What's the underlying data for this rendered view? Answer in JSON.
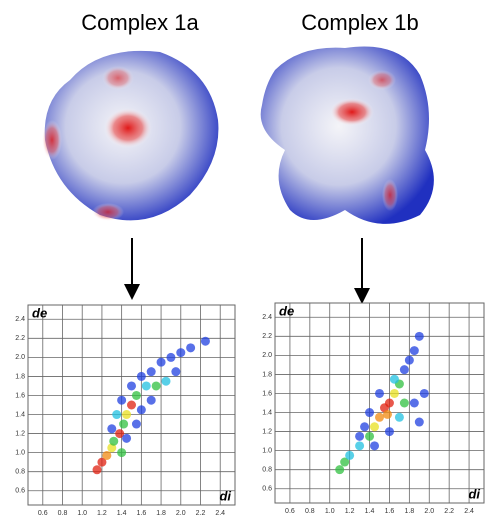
{
  "chart_data": [
    {
      "type": "scatter",
      "title": "Complex 1a",
      "xlabel": "di",
      "ylabel": "de",
      "xlim": [
        0.45,
        2.55
      ],
      "ylim": [
        0.45,
        2.55
      ],
      "xticks": [
        0.6,
        0.8,
        {
          "value": 1,
          "label": "1.0"
        },
        1.2,
        1.4,
        1.6,
        1.8,
        {
          "value": 2,
          "label": "2.0"
        },
        2.2,
        2.4
      ],
      "yticks": [
        0.6,
        0.8,
        {
          "value": 1,
          "label": "1.0"
        },
        1.2,
        1.4,
        1.6,
        1.8,
        {
          "value": 2,
          "label": "2.0"
        },
        2.2,
        2.4
      ],
      "grid": true,
      "x": [
        1.15,
        1.2,
        1.25,
        1.3,
        1.32,
        1.38,
        1.42,
        1.45,
        1.5,
        1.55,
        1.5,
        1.4,
        1.35,
        1.3,
        1.6,
        1.7,
        1.65,
        1.7,
        1.8,
        1.9,
        2.0,
        2.1,
        2.25,
        1.85,
        1.95,
        1.55,
        1.45,
        1.6,
        1.75,
        1.4
      ],
      "values": [
        0.82,
        0.9,
        0.97,
        1.05,
        1.12,
        1.2,
        1.3,
        1.4,
        1.5,
        1.6,
        1.7,
        1.55,
        1.4,
        1.25,
        1.45,
        1.55,
        1.7,
        1.85,
        1.95,
        2.0,
        2.05,
        2.1,
        2.17,
        1.75,
        1.85,
        1.3,
        1.15,
        1.8,
        1.7,
        1.0
      ],
      "colors": [
        "#e02010",
        "#e02010",
        "#f08a10",
        "#e8e020",
        "#30c040",
        "#e02010",
        "#30c040",
        "#e8e020",
        "#e02010",
        "#30c040",
        "#2040e0",
        "#2040e0",
        "#20c0e0",
        "#2040e0",
        "#2040e0",
        "#2040e0",
        "#20c0e0",
        "#2040e0",
        "#2040e0",
        "#2040e0",
        "#2040e0",
        "#2040e0",
        "#2040e0",
        "#20c0e0",
        "#2040e0",
        "#2040e0",
        "#2040e0",
        "#2040e0",
        "#30c040",
        "#30c040"
      ]
    },
    {
      "type": "scatter",
      "title": "Complex 1b",
      "xlabel": "di",
      "ylabel": "de",
      "xlim": [
        0.45,
        2.55
      ],
      "ylim": [
        0.45,
        2.55
      ],
      "xticks": [
        0.6,
        0.8,
        {
          "value": 1,
          "label": "1.0"
        },
        1.2,
        1.4,
        1.6,
        1.8,
        {
          "value": 2,
          "label": "2.0"
        },
        2.2,
        2.4
      ],
      "yticks": [
        0.6,
        0.8,
        {
          "value": 1,
          "label": "1.0"
        },
        1.2,
        1.4,
        1.6,
        1.8,
        {
          "value": 2,
          "label": "2.0"
        },
        2.2,
        2.4
      ],
      "grid": true,
      "x": [
        1.1,
        1.15,
        1.2,
        1.3,
        1.4,
        1.45,
        1.5,
        1.55,
        1.6,
        1.58,
        1.65,
        1.7,
        1.75,
        1.8,
        1.85,
        1.9,
        1.85,
        1.9,
        1.95,
        1.4,
        1.35,
        1.5,
        1.7,
        1.6,
        1.75,
        1.45,
        1.3,
        1.65
      ],
      "values": [
        0.8,
        0.88,
        0.95,
        1.05,
        1.15,
        1.25,
        1.35,
        1.45,
        1.5,
        1.38,
        1.6,
        1.7,
        1.85,
        1.95,
        2.05,
        2.2,
        1.5,
        1.3,
        1.6,
        1.4,
        1.25,
        1.6,
        1.35,
        1.2,
        1.5,
        1.05,
        1.15,
        1.75
      ],
      "colors": [
        "#30c040",
        "#30c040",
        "#20c0e0",
        "#20c0e0",
        "#30c040",
        "#e8e020",
        "#f08a10",
        "#e02010",
        "#e02010",
        "#f08a10",
        "#e8e020",
        "#30c040",
        "#2040e0",
        "#2040e0",
        "#2040e0",
        "#2040e0",
        "#2040e0",
        "#2040e0",
        "#2040e0",
        "#2040e0",
        "#2040e0",
        "#2040e0",
        "#20c0e0",
        "#2040e0",
        "#30c040",
        "#2040e0",
        "#2040e0",
        "#20c0e0"
      ]
    }
  ]
}
